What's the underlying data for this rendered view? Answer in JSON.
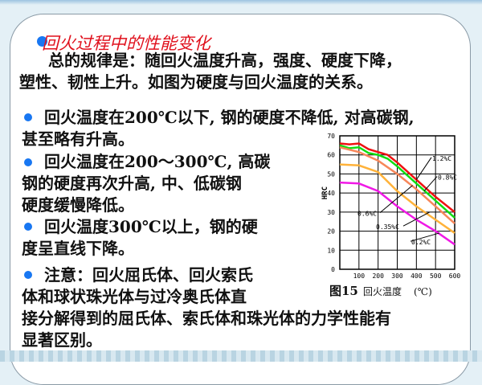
{
  "title": "回火过程中的性能变化",
  "intro": [
    "总的规律是：随回火温度升高，强度、硬度下降，",
    "塑性、韧性上升。如图为硬度与回火温度的关系。"
  ],
  "bullets": [
    {
      "lines": [
        "回火温度在200℃以下, 钢的硬度不降低, 对高碳钢,",
        "甚至略有升高。"
      ]
    },
    {
      "lines": [
        "回火温度在200～300℃, 高碳",
        "钢的硬度再次升高, 中、低碳钢",
        "硬度缓慢降低。"
      ]
    },
    {
      "lines": [
        "回火温度300℃以上，钢的硬",
        "度呈直线下降。"
      ]
    },
    {
      "lines": [
        "注意：回火屈氏体、回火索氏",
        "体和球状珠光体与过冷奥氏体直",
        "接分解得到的屈氏体、索氏体和珠光体的力学性能有",
        "显著区别。"
      ]
    }
  ],
  "colors": {
    "title": "#e0101c",
    "bullet": "#1877f2"
  },
  "chart_data": {
    "type": "line",
    "caption_number": "图15",
    "xlabel": "回火温度",
    "xunit": "(℃)",
    "ylabel": "HRC",
    "xlim": [
      0,
      600
    ],
    "ylim": [
      0,
      70
    ],
    "xticks": [
      "100",
      "200",
      "300",
      "400",
      "500",
      "600"
    ],
    "yticks": [
      "0",
      "10",
      "20",
      "30",
      "40",
      "50",
      "60",
      "70"
    ],
    "grid": true,
    "series": [
      {
        "name": "1.2%C",
        "color": "#ee1111",
        "x": [
          0,
          50,
          100,
          150,
          200,
          250,
          300,
          400,
          500,
          600
        ],
        "y": [
          66,
          65.5,
          66,
          63,
          61.5,
          60,
          56,
          47,
          38,
          30
        ]
      },
      {
        "name": "0.8%C",
        "color": "#11dd11",
        "x": [
          0,
          50,
          100,
          150,
          200,
          250,
          300,
          400,
          500,
          600
        ],
        "y": [
          65,
          63.5,
          64,
          61,
          60,
          58,
          54,
          45,
          36,
          27
        ]
      },
      {
        "name": "0.6%C",
        "color": "#f7875a",
        "x": [
          0,
          100,
          200,
          300,
          400,
          500,
          600
        ],
        "y": [
          64,
          61.5,
          57,
          50,
          42,
          33,
          24
        ]
      },
      {
        "name": "0.35%C",
        "color": "#ffb23a",
        "x": [
          0,
          100,
          200,
          300,
          400,
          500,
          600
        ],
        "y": [
          55,
          54.5,
          51,
          41,
          33,
          26,
          19
        ]
      },
      {
        "name": "0.2%C",
        "color": "#f019e6",
        "x": [
          0,
          100,
          200,
          300,
          400,
          500,
          600
        ],
        "y": [
          45.5,
          45,
          41,
          33,
          26,
          20,
          13
        ]
      }
    ]
  }
}
